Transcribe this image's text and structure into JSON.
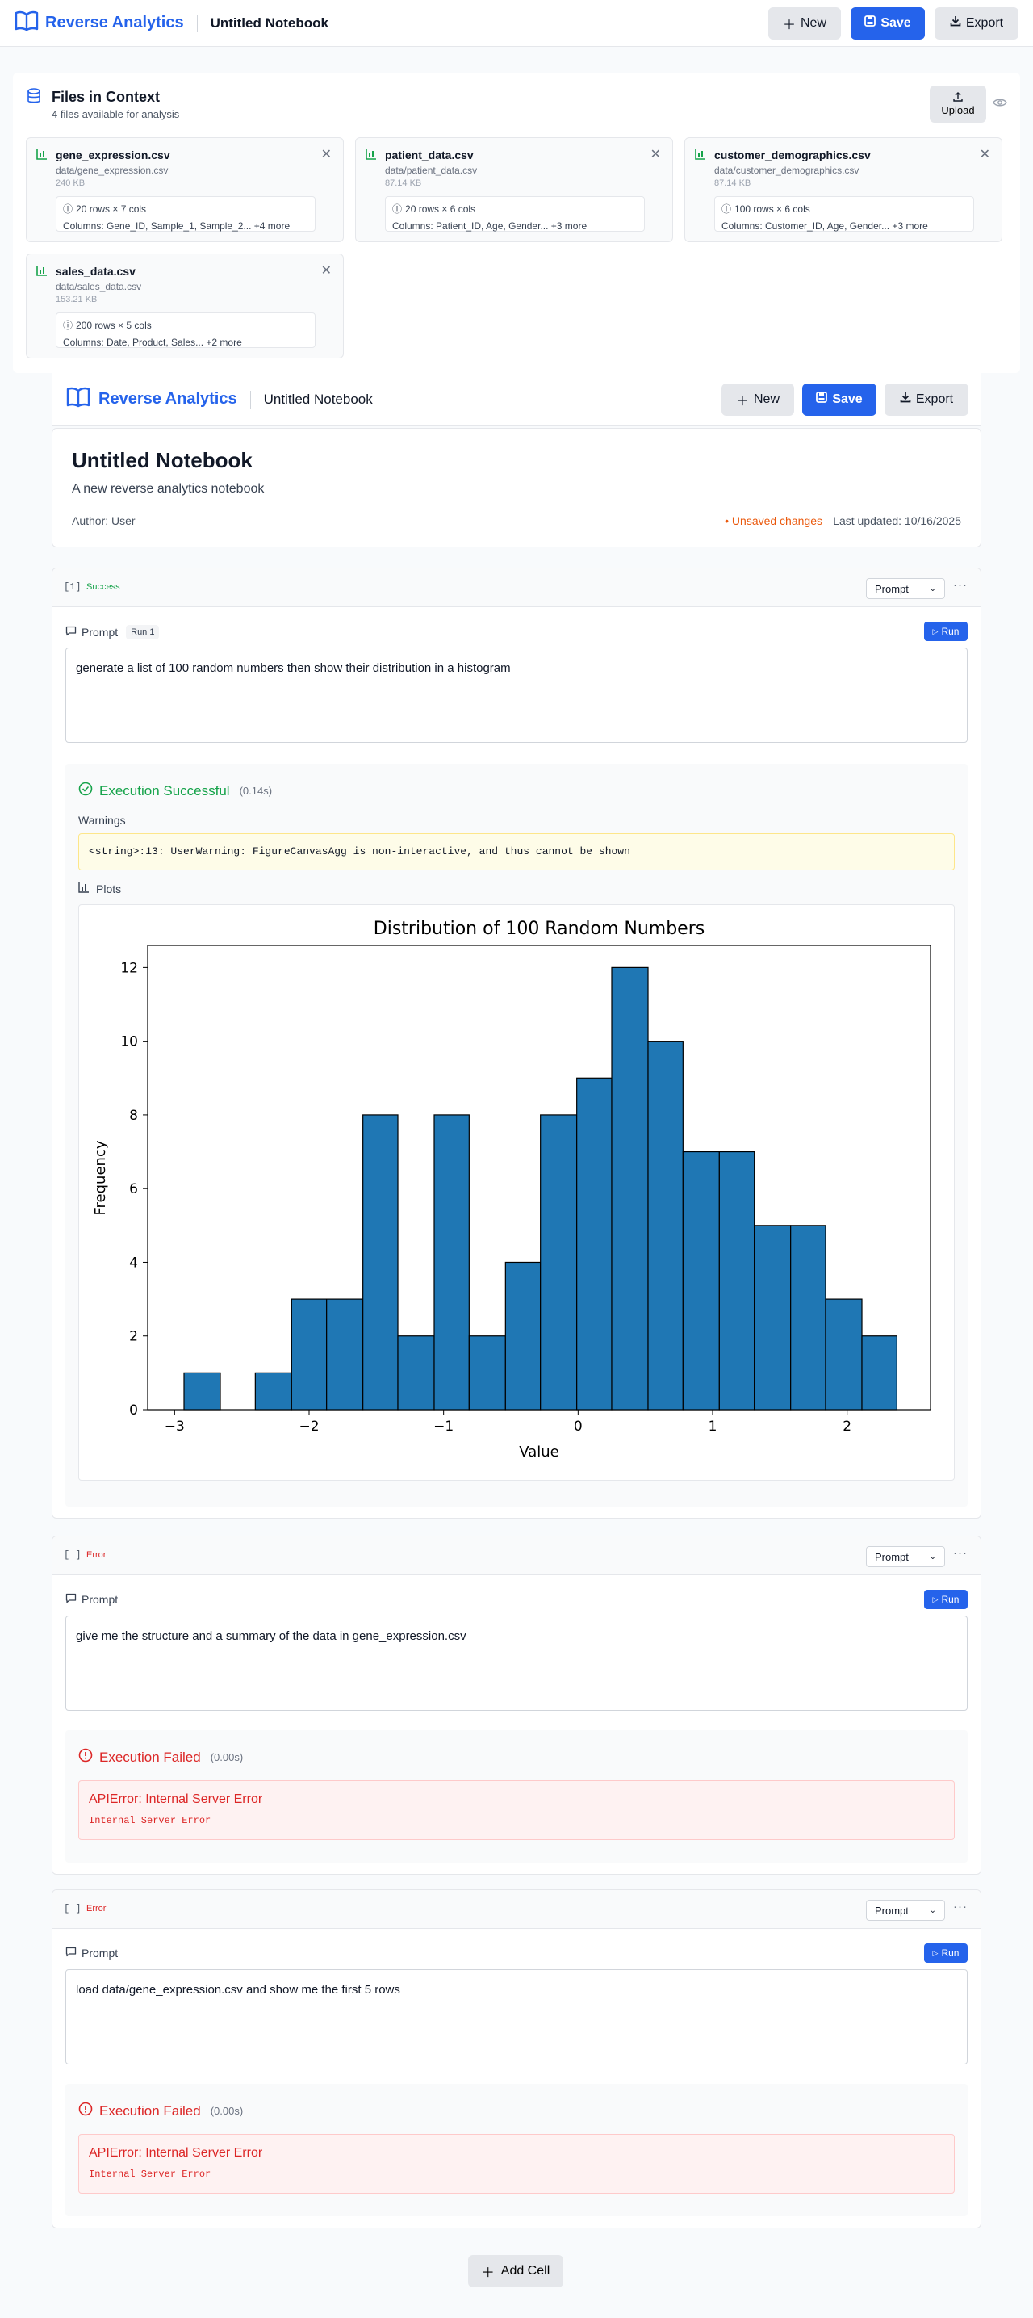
{
  "app": {
    "name": "Reverse Analytics",
    "notebook_title": "Untitled Notebook"
  },
  "toolbar": {
    "new_label": "New",
    "save_label": "Save",
    "export_label": "Export"
  },
  "files_panel": {
    "title": "Files in Context",
    "subtitle": "4 files available for analysis",
    "upload_label": "Upload",
    "files": [
      {
        "name": "gene_expression.csv",
        "path": "data/gene_expression.csv",
        "size": "240 KB",
        "shape": "20 rows × 7 cols",
        "columns": "Columns: Gene_ID, Sample_1, Sample_2... +4 more"
      },
      {
        "name": "patient_data.csv",
        "path": "data/patient_data.csv",
        "size": "87.14 KB",
        "shape": "20 rows × 6 cols",
        "columns": "Columns: Patient_ID, Age, Gender... +3 more"
      },
      {
        "name": "customer_demographics.csv",
        "path": "data/customer_demographics.csv",
        "size": "87.14 KB",
        "shape": "100 rows × 6 cols",
        "columns": "Columns: Customer_ID, Age, Gender... +3 more"
      },
      {
        "name": "sales_data.csv",
        "path": "data/sales_data.csv",
        "size": "153.21 KB",
        "shape": "200 rows × 5 cols",
        "columns": "Columns: Date, Product, Sales... +2 more"
      }
    ]
  },
  "notebook": {
    "title": "Untitled Notebook",
    "description": "A new reverse analytics notebook",
    "author": "Author: User",
    "unsaved": "• Unsaved changes",
    "last_updated": "Last updated: 10/16/2025"
  },
  "cells": [
    {
      "index": "[1]",
      "status": "Success",
      "mode": "Prompt",
      "prompt_label": "Prompt",
      "run_badge": "Run 1",
      "run_label": "Run",
      "prompt": "generate a list of 100 random numbers then show their distribution in a histogram",
      "exec_title": "Execution Successful",
      "exec_time": "(0.14s)",
      "warnings_label": "Warnings",
      "warning_text": "<string>:13: UserWarning: FigureCanvasAgg is non-interactive, and thus cannot be shown",
      "plots_label": "Plots"
    },
    {
      "index": "[ ]",
      "status": "Error",
      "mode": "Prompt",
      "prompt_label": "Prompt",
      "run_label": "Run",
      "prompt": "give me the structure and a summary of the data in gene_expression.csv",
      "exec_title": "Execution Failed",
      "exec_time": "(0.00s)",
      "error_title": "APIError: Internal Server Error",
      "error_msg": "Internal Server Error"
    },
    {
      "index": "[ ]",
      "status": "Error",
      "mode": "Prompt",
      "prompt_label": "Prompt",
      "run_label": "Run",
      "prompt": "load data/gene_expression.csv and show me the first 5 rows",
      "exec_title": "Execution Failed",
      "exec_time": "(0.00s)",
      "error_title": "APIError: Internal Server Error",
      "error_msg": "Internal Server Error"
    }
  ],
  "add_cell_label": "Add Cell",
  "colors": {
    "accent": "#2563eb",
    "success": "#16a34a",
    "error": "#dc2626",
    "warning": "#ea580c",
    "bar_fill": "#1f77b4"
  },
  "chart_data": {
    "type": "bar",
    "title": "Distribution of 100 Random Numbers",
    "xlabel": "Value",
    "ylabel": "Frequency",
    "bin_edges": [
      -2.93,
      -2.66,
      -2.4,
      -2.13,
      -1.87,
      -1.6,
      -1.34,
      -1.07,
      -0.81,
      -0.54,
      -0.28,
      -0.01,
      0.25,
      0.52,
      0.78,
      1.05,
      1.31,
      1.58,
      1.84,
      2.11,
      2.37
    ],
    "values": [
      1,
      0,
      1,
      3,
      3,
      8,
      2,
      8,
      2,
      4,
      8,
      9,
      12,
      10,
      7,
      7,
      5,
      5,
      3,
      2
    ],
    "xlim": [
      -3.2,
      2.62
    ],
    "ylim": [
      0,
      12.6
    ],
    "xticks": [
      -3,
      -2,
      -1,
      0,
      1,
      2
    ],
    "xtick_labels": [
      "−3",
      "−2",
      "−1",
      "0",
      "1",
      "2"
    ],
    "yticks": [
      0,
      2,
      4,
      6,
      8,
      10,
      12
    ],
    "grid": false
  }
}
